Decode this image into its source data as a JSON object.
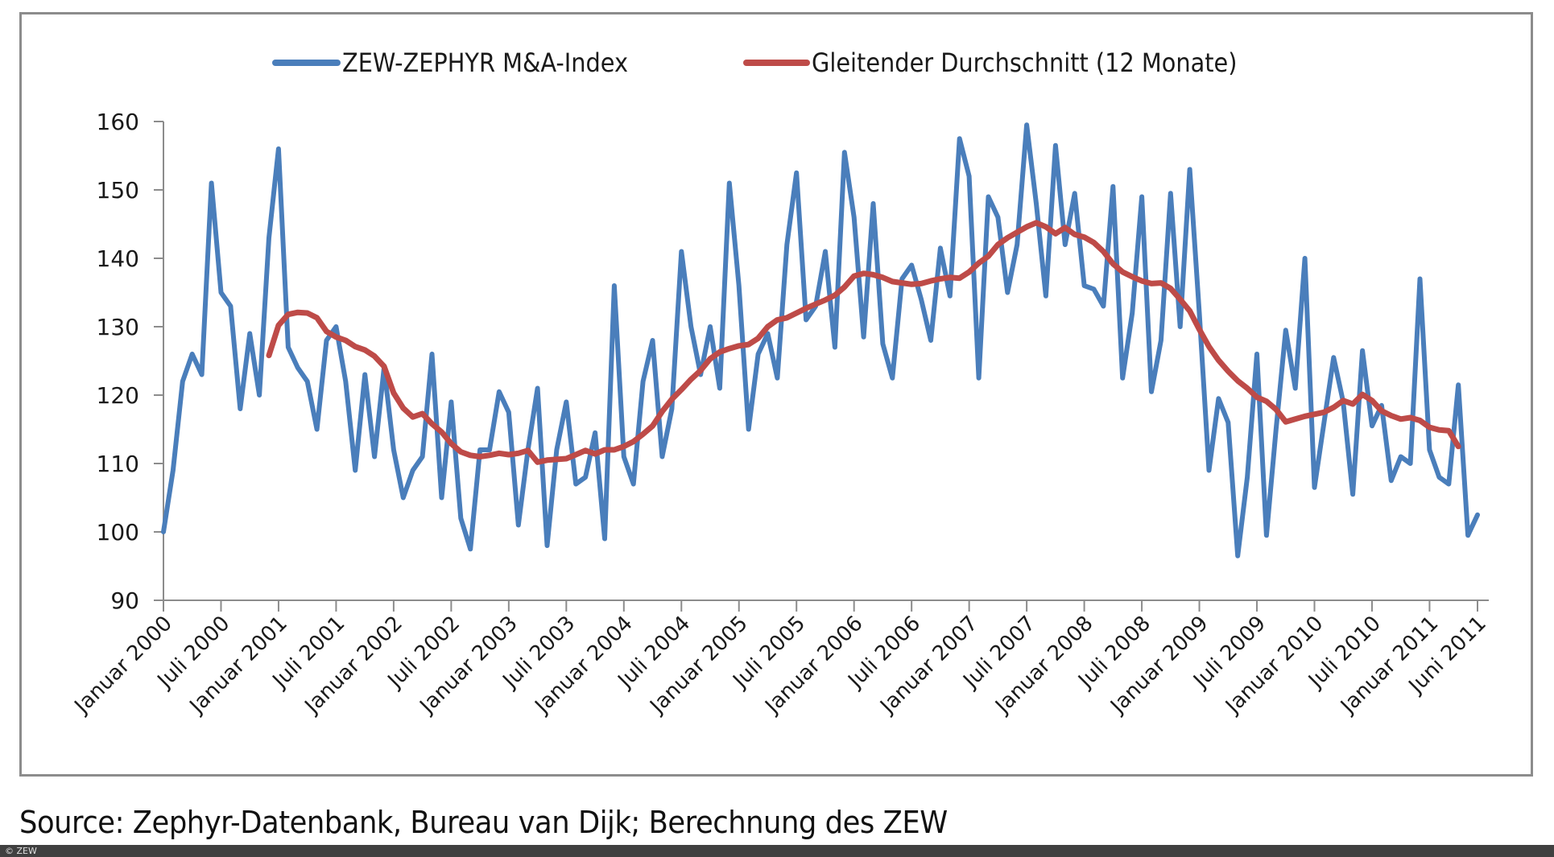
{
  "chart_data": {
    "type": "line",
    "title": "",
    "xlabel": "",
    "ylabel": "",
    "ylim": [
      90,
      160
    ],
    "yticks": [
      90,
      100,
      110,
      120,
      130,
      140,
      150,
      160
    ],
    "grid": false,
    "legend_position": "top-center",
    "x_tick_labels": [
      "Januar 2000",
      "Juli 2000",
      "Januar 2001",
      "Juli 2001",
      "Januar 2002",
      "Juli 2002",
      "Januar 2003",
      "Juli 2003",
      "Januar 2004",
      "Juli 2004",
      "Januar 2005",
      "Juli 2005",
      "Januar 2006",
      "Juli 2006",
      "Januar 2007",
      "Juli 2007",
      "Januar 2008",
      "Juli 2008",
      "Januar 2009",
      "Juli 2009",
      "Januar 2010",
      "Juli 2010",
      "Januar 2011",
      "Juni 2011"
    ],
    "x_start": "Januar 2000",
    "x_end": "Juni 2011",
    "x_unit": "month",
    "series": [
      {
        "name": "ZEW-ZEPHYR M&A-Index",
        "color": "#4a7ebb",
        "values": [
          100,
          109,
          122,
          126,
          123,
          151,
          135,
          133,
          118,
          129,
          120,
          143,
          156,
          127,
          124,
          122,
          115,
          128,
          130,
          122,
          109,
          123,
          111,
          124,
          112,
          105,
          109,
          111,
          126,
          105,
          119,
          102,
          97.5,
          112,
          112,
          120.5,
          117.5,
          101,
          112,
          121,
          98,
          112,
          119,
          107,
          108,
          114.5,
          99,
          136,
          111,
          107,
          122,
          128,
          111,
          118,
          141,
          130,
          123,
          130,
          121,
          151,
          136,
          115,
          126,
          129,
          122.5,
          142,
          152.5,
          131,
          133,
          141,
          127,
          155.5,
          146,
          128.5,
          148,
          127.5,
          122.5,
          137,
          139,
          134,
          128,
          141.5,
          134.5,
          157.5,
          152,
          122.5,
          149,
          146,
          135,
          142,
          159.5,
          148,
          134.5,
          156.5,
          142,
          149.5,
          136,
          135.5,
          133,
          150.5,
          122.5,
          132,
          149,
          120.5,
          128,
          149.5,
          130,
          153,
          132,
          109,
          119.5,
          116,
          96.5,
          108,
          126,
          99.5,
          115,
          129.5,
          121,
          140,
          106.5,
          116,
          125.5,
          119,
          105.5,
          126.5,
          115.5,
          118.5,
          107.5,
          111,
          110,
          137,
          112,
          108,
          107,
          121.5,
          99.5,
          102.5
        ]
      },
      {
        "name": "Gleitender Durchschnitt (12 Monate)",
        "color": "#be4b48",
        "start_index": 11,
        "values": [
          125.8,
          130.2,
          131.8,
          132.1,
          132,
          131.3,
          129.3,
          128.5,
          128,
          127.1,
          126.6,
          125.7,
          124.2,
          120.3,
          118.1,
          116.8,
          117.3,
          115.8,
          114.6,
          112.9,
          111.7,
          111.2,
          111,
          111.2,
          111.5,
          111.3,
          111.5,
          111.9,
          110.2,
          110.5,
          110.6,
          110.7,
          111.3,
          111.9,
          111.4,
          112,
          112,
          112.5,
          113.2,
          114.3,
          115.5,
          117.6,
          119.4,
          120.8,
          122.3,
          123.6,
          125.3,
          126.3,
          126.8,
          127.2,
          127.4,
          128.3,
          130,
          131,
          131.3,
          132,
          132.7,
          133.3,
          133.9,
          134.6,
          135.8,
          137.4,
          137.8,
          137.6,
          137.2,
          136.6,
          136.4,
          136.2,
          136.3,
          136.7,
          137,
          137.2,
          137.1,
          138,
          139.3,
          140.3,
          142,
          143,
          143.8,
          144.6,
          145.2,
          144.6,
          143.6,
          144.5,
          143.5,
          143.1,
          142.3,
          141,
          139.2,
          138,
          137.3,
          136.7,
          136.3,
          136.4,
          135.6,
          134,
          132.3,
          129.6,
          127.1,
          125.1,
          123.5,
          122.1,
          121,
          119.7,
          119.1,
          117.9,
          116.1,
          116.5,
          116.9,
          117.2,
          117.5,
          118.2,
          119.2,
          118.7,
          120.1,
          119.2,
          117.7,
          117,
          116.5,
          116.7,
          116.3,
          115.3,
          114.9,
          114.8,
          112.5
        ]
      }
    ]
  },
  "legend": {
    "items": [
      {
        "label": "ZEW-ZEPHYR M&A-Index",
        "color": "#4a7ebb"
      },
      {
        "label": "Gleitender Durchschnitt (12 Monate)",
        "color": "#be4b48"
      }
    ]
  },
  "source_text": "Source: Zephyr-Datenbank, Bureau van Dijk; Berechnung des ZEW",
  "footer": {
    "copyright": "© ZEW"
  },
  "colors": {
    "axis": "#8c8c8c",
    "frame": "#8c8c8c",
    "footer_bar": "#404040"
  }
}
